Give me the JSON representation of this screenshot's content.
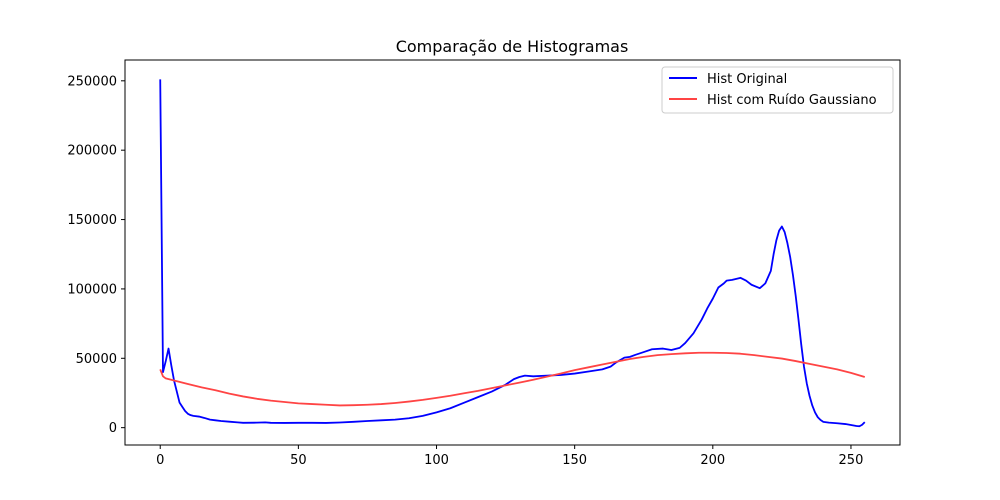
{
  "chart_data": {
    "type": "line",
    "title": "Comparação de Histogramas",
    "xlabel": "",
    "ylabel": "",
    "xlim": [
      -12.75,
      267.75
    ],
    "ylim": [
      -12500,
      265000
    ],
    "x_ticks": [
      0,
      50,
      100,
      150,
      200,
      250
    ],
    "y_ticks": [
      0,
      50000,
      100000,
      150000,
      200000,
      250000
    ],
    "grid": false,
    "legend_position": "top-right",
    "series": [
      {
        "name": "Hist Original",
        "color": "#0000ff",
        "points": [
          [
            0,
            251000
          ],
          [
            1,
            40000
          ],
          [
            2,
            48000
          ],
          [
            3,
            57000
          ],
          [
            4,
            45000
          ],
          [
            5,
            34000
          ],
          [
            6,
            26000
          ],
          [
            7,
            18000
          ],
          [
            8,
            15000
          ],
          [
            9,
            12000
          ],
          [
            10,
            10000
          ],
          [
            11,
            9000
          ],
          [
            12,
            8500
          ],
          [
            14,
            8000
          ],
          [
            16,
            7000
          ],
          [
            18,
            5800
          ],
          [
            20,
            5300
          ],
          [
            22,
            4800
          ],
          [
            25,
            4300
          ],
          [
            28,
            3800
          ],
          [
            30,
            3500
          ],
          [
            35,
            3600
          ],
          [
            38,
            3800
          ],
          [
            40,
            3500
          ],
          [
            45,
            3400
          ],
          [
            50,
            3500
          ],
          [
            55,
            3500
          ],
          [
            60,
            3400
          ],
          [
            65,
            3700
          ],
          [
            70,
            4200
          ],
          [
            75,
            4800
          ],
          [
            80,
            5300
          ],
          [
            85,
            5800
          ],
          [
            90,
            6800
          ],
          [
            95,
            8500
          ],
          [
            100,
            11000
          ],
          [
            105,
            14000
          ],
          [
            110,
            18000
          ],
          [
            115,
            22000
          ],
          [
            120,
            26000
          ],
          [
            125,
            31000
          ],
          [
            128,
            35000
          ],
          [
            130,
            36500
          ],
          [
            132,
            37500
          ],
          [
            135,
            37000
          ],
          [
            140,
            37500
          ],
          [
            145,
            38000
          ],
          [
            150,
            39000
          ],
          [
            155,
            40500
          ],
          [
            160,
            42000
          ],
          [
            163,
            44000
          ],
          [
            165,
            47000
          ],
          [
            168,
            50500
          ],
          [
            170,
            51000
          ],
          [
            172,
            52500
          ],
          [
            175,
            54500
          ],
          [
            178,
            56500
          ],
          [
            182,
            57000
          ],
          [
            185,
            56000
          ],
          [
            188,
            57500
          ],
          [
            190,
            61000
          ],
          [
            193,
            68000
          ],
          [
            196,
            78000
          ],
          [
            198,
            86000
          ],
          [
            200,
            93000
          ],
          [
            202,
            101000
          ],
          [
            204,
            104000
          ],
          [
            205,
            106000
          ],
          [
            207,
            106500
          ],
          [
            210,
            108000
          ],
          [
            212,
            106000
          ],
          [
            214,
            103000
          ],
          [
            217,
            100500
          ],
          [
            219,
            104000
          ],
          [
            221,
            113000
          ],
          [
            222,
            125000
          ],
          [
            223,
            135000
          ],
          [
            224,
            142000
          ],
          [
            225,
            145000
          ],
          [
            226,
            141000
          ],
          [
            227,
            133000
          ],
          [
            228,
            123000
          ],
          [
            229,
            110000
          ],
          [
            230,
            95000
          ],
          [
            231,
            78000
          ],
          [
            232,
            60000
          ],
          [
            233,
            44000
          ],
          [
            234,
            32000
          ],
          [
            235,
            23000
          ],
          [
            236,
            16000
          ],
          [
            237,
            11000
          ],
          [
            238,
            7500
          ],
          [
            239,
            5500
          ],
          [
            240,
            4200
          ],
          [
            242,
            3600
          ],
          [
            245,
            3200
          ],
          [
            248,
            2600
          ],
          [
            250,
            1900
          ],
          [
            252,
            1200
          ],
          [
            253,
            1000
          ],
          [
            254,
            2000
          ],
          [
            255,
            4000
          ]
        ]
      },
      {
        "name": "Hist com Ruído Gaussiano",
        "color": "#ff4444",
        "points": [
          [
            0,
            42000
          ],
          [
            1,
            37000
          ],
          [
            2,
            35500
          ],
          [
            5,
            34000
          ],
          [
            10,
            31500
          ],
          [
            15,
            29000
          ],
          [
            20,
            27000
          ],
          [
            25,
            24500
          ],
          [
            30,
            22500
          ],
          [
            35,
            20800
          ],
          [
            40,
            19500
          ],
          [
            45,
            18500
          ],
          [
            50,
            17500
          ],
          [
            55,
            17000
          ],
          [
            60,
            16500
          ],
          [
            65,
            16000
          ],
          [
            70,
            16200
          ],
          [
            75,
            16500
          ],
          [
            80,
            17000
          ],
          [
            85,
            17800
          ],
          [
            90,
            18800
          ],
          [
            95,
            20000
          ],
          [
            100,
            21500
          ],
          [
            105,
            23000
          ],
          [
            110,
            24800
          ],
          [
            115,
            26500
          ],
          [
            120,
            28500
          ],
          [
            125,
            30500
          ],
          [
            130,
            32500
          ],
          [
            135,
            34500
          ],
          [
            140,
            36800
          ],
          [
            145,
            39000
          ],
          [
            150,
            41500
          ],
          [
            155,
            43500
          ],
          [
            160,
            45500
          ],
          [
            165,
            47500
          ],
          [
            170,
            49500
          ],
          [
            175,
            51000
          ],
          [
            180,
            52300
          ],
          [
            185,
            53000
          ],
          [
            190,
            53600
          ],
          [
            195,
            54000
          ],
          [
            200,
            54000
          ],
          [
            205,
            53800
          ],
          [
            210,
            53300
          ],
          [
            215,
            52300
          ],
          [
            220,
            51000
          ],
          [
            225,
            49800
          ],
          [
            230,
            48000
          ],
          [
            235,
            46000
          ],
          [
            240,
            44000
          ],
          [
            245,
            42000
          ],
          [
            250,
            39500
          ],
          [
            255,
            36500
          ]
        ]
      }
    ]
  }
}
